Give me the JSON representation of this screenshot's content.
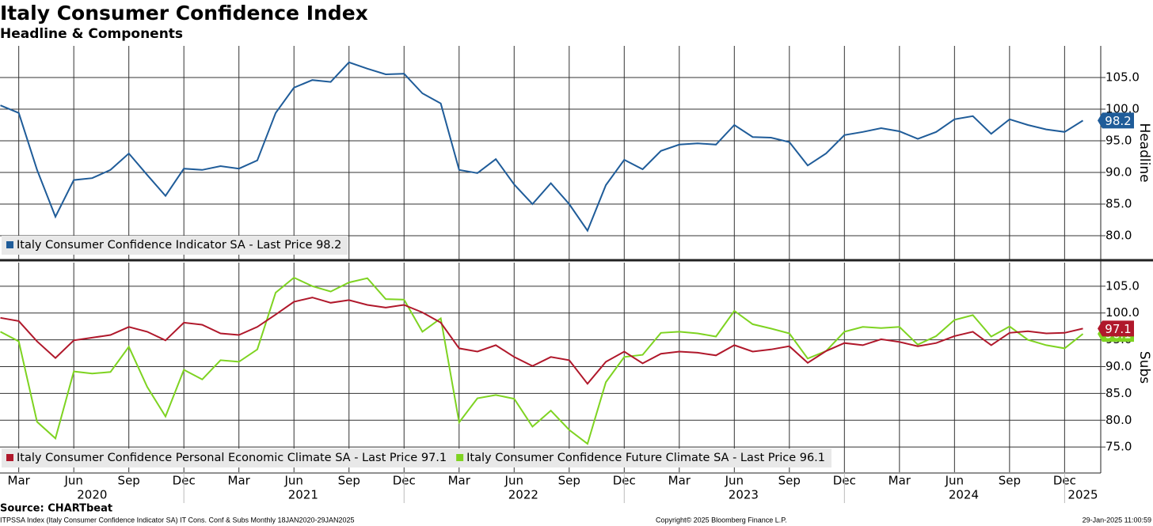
{
  "chart_data": {
    "type": "line",
    "title": "Italy Consumer Confidence Index",
    "subtitle": "Headline & Components",
    "categories": [
      null,
      "Mar",
      null,
      null,
      "Jun",
      null,
      null,
      "Sep",
      null,
      null,
      "Dec",
      null,
      null,
      "Mar",
      null,
      null,
      "Jun",
      null,
      null,
      "Sep",
      null,
      null,
      "Dec",
      null,
      null,
      "Mar",
      null,
      null,
      "Jun",
      null,
      null,
      "Sep",
      null,
      null,
      "Dec",
      null,
      null,
      "Mar",
      null,
      null,
      "Jun",
      null,
      null,
      "Sep",
      null,
      null,
      "Dec",
      null,
      null,
      "Mar",
      null,
      null,
      "Jun",
      null,
      null,
      "Sep",
      null,
      null,
      "Dec",
      null
    ],
    "years": [
      "2020",
      "2021",
      "2022",
      "2023",
      "2024",
      "2025"
    ],
    "grid": true,
    "panels": [
      {
        "axis_label": "Headline",
        "ylim": [
          76.25,
          110
        ],
        "yticks": [
          {
            "value": 80,
            "label": "80.0"
          },
          {
            "value": 85,
            "label": "85.0"
          },
          {
            "value": 90,
            "label": "90.0"
          },
          {
            "value": 95,
            "label": "95.0"
          },
          {
            "value": 100,
            "label": "100.0"
          },
          {
            "value": 105,
            "label": "105.0"
          }
        ],
        "series": [
          {
            "name": "Italy Consumer Confidence Indicator SA - Last Price 98.2",
            "color": "#1f5c99",
            "values": [
              100.6,
              99.4,
              90.4,
              83.0,
              88.8,
              89.1,
              90.4,
              93.0,
              89.6,
              86.3,
              90.6,
              90.4,
              91.0,
              90.6,
              91.9,
              99.4,
              103.4,
              104.6,
              104.3,
              107.4,
              106.4,
              105.5,
              105.6,
              102.5,
              100.9,
              90.4,
              89.9,
              92.1,
              88.1,
              85.0,
              88.3,
              85.0,
              80.8,
              88.0,
              92.0,
              90.5,
              93.4,
              94.4,
              94.6,
              94.4,
              97.5,
              95.6,
              95.5,
              94.8,
              91.1,
              93.0,
              95.9,
              96.4,
              97.0,
              96.5,
              95.3,
              96.4,
              98.4,
              98.9,
              96.1,
              98.4,
              97.5,
              96.8,
              96.4,
              98.2
            ]
          }
        ]
      },
      {
        "axis_label": "Subs",
        "ylim": [
          70.3,
          109.4
        ],
        "yticks": [
          {
            "value": 75,
            "label": "75.0"
          },
          {
            "value": 80,
            "label": "80.0"
          },
          {
            "value": 85,
            "label": "85.0"
          },
          {
            "value": 90,
            "label": "90.0"
          },
          {
            "value": 95,
            "label": "95.0"
          },
          {
            "value": 100,
            "label": "100.0"
          },
          {
            "value": 105,
            "label": "105.0"
          }
        ],
        "series": [
          {
            "name": "Italy Consumer Confidence Future Climate SA - Last Price 96.1",
            "color": "#7ed321",
            "values": [
              96.5,
              94.7,
              79.7,
              76.6,
              89.1,
              88.7,
              89.0,
              93.7,
              86.2,
              80.7,
              89.4,
              87.6,
              91.2,
              90.9,
              93.2,
              103.8,
              106.6,
              105.0,
              104.0,
              105.7,
              106.5,
              102.6,
              102.5,
              96.5,
              99.0,
              79.6,
              84.1,
              84.7,
              84.0,
              78.8,
              81.8,
              78.2,
              75.6,
              87.1,
              91.8,
              92.2,
              96.3,
              96.5,
              96.2,
              95.6,
              100.4,
              97.9,
              97.1,
              96.2,
              91.5,
              92.9,
              96.5,
              97.4,
              97.2,
              97.4,
              94.1,
              95.7,
              98.7,
              99.6,
              95.6,
              97.5,
              95.0,
              94.0,
              93.4,
              96.1
            ]
          },
          {
            "name": "Italy Consumer Confidence Personal Economic Climate SA - Last Price 97.1",
            "color": "#b0182b",
            "values": [
              99.1,
              98.5,
              94.7,
              91.6,
              94.9,
              95.4,
              95.9,
              97.4,
              96.5,
              94.9,
              98.2,
              97.8,
              96.2,
              95.9,
              97.4,
              99.7,
              102.1,
              102.9,
              101.9,
              102.4,
              101.5,
              101.0,
              101.5,
              100.1,
              98.2,
              93.4,
              92.8,
              94.0,
              91.8,
              90.1,
              91.8,
              91.2,
              86.8,
              90.9,
              92.8,
              90.6,
              92.4,
              92.8,
              92.6,
              92.1,
              94.0,
              92.8,
              93.2,
              93.8,
              90.7,
              92.9,
              94.4,
              94.0,
              95.1,
              94.6,
              93.8,
              94.4,
              95.7,
              96.5,
              94.0,
              96.3,
              96.6,
              96.2,
              96.3,
              97.1
            ]
          }
        ]
      }
    ]
  },
  "footer": {
    "source": "Source: CHARTbeat",
    "description": "ITPSSA Index (Italy Consumer Confidence Indicator SA) IT Cons. Conf & Subs  Monthly 18JAN2020-29JAN2025",
    "copyright": "Copyright© 2025 Bloomberg Finance L.P.",
    "timestamp": "29-Jan-2025 11:00:59"
  }
}
